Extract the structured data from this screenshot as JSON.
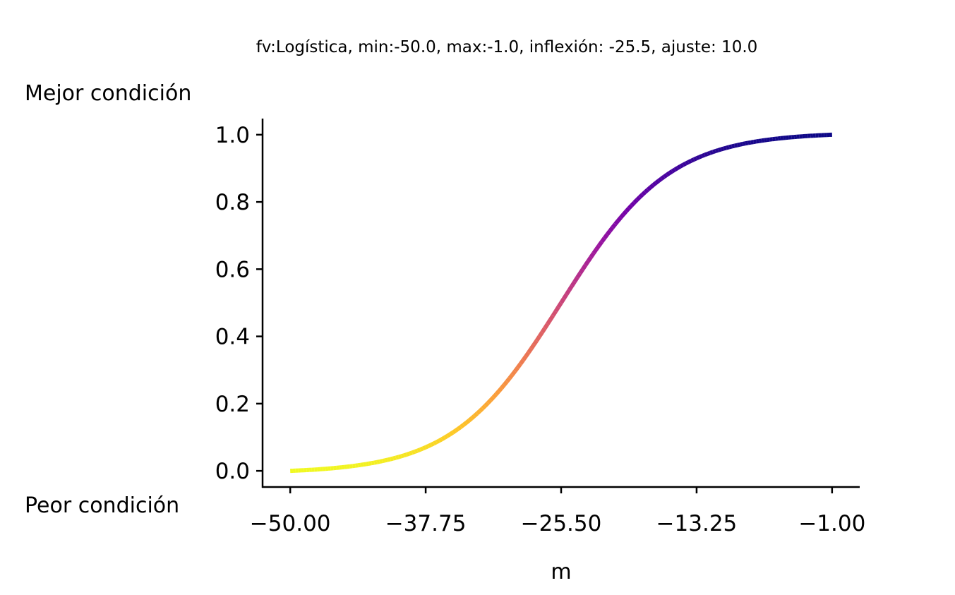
{
  "chart_data": {
    "type": "line",
    "title": "fv:Logística, min:-50.0, max:-1.0, inflexión: -25.5, ajuste: 10.0",
    "xlabel": "m",
    "ylabel": "",
    "best_label": "Mejor condición",
    "worst_label": "Peor condición",
    "xlim": [
      -52.5,
      1.5
    ],
    "ylim": [
      -0.048,
      1.048
    ],
    "xticks": [
      -50.0,
      -37.75,
      -25.5,
      -13.25,
      -1.0
    ],
    "xtick_labels": [
      "−50.00",
      "−37.75",
      "−25.50",
      "−13.25",
      "−1.00"
    ],
    "yticks": [
      0.0,
      0.2,
      0.4,
      0.6,
      0.8,
      1.0
    ],
    "ytick_labels": [
      "0.0",
      "0.2",
      "0.4",
      "0.6",
      "0.8",
      "1.0"
    ],
    "curve": {
      "kind": "logistic",
      "x_min": -50.0,
      "x_max": -1.0,
      "inflection": -25.5,
      "adjust": 10.0
    },
    "series": [
      {
        "x": [
          -50.0,
          -47.55,
          -45.1,
          -42.65,
          -40.2,
          -37.75,
          -35.3,
          -32.85,
          -30.4,
          -27.95,
          -25.5,
          -23.05,
          -20.6,
          -18.15,
          -15.7,
          -13.25,
          -10.8,
          -8.35,
          -5.9,
          -3.45,
          -1.0
        ],
        "values": [
          0.0,
          0.005,
          0.012,
          0.021,
          0.036,
          0.063,
          0.104,
          0.165,
          0.248,
          0.358,
          0.5,
          0.642,
          0.752,
          0.835,
          0.896,
          0.937,
          0.964,
          0.979,
          0.988,
          0.995,
          1.0
        ]
      }
    ],
    "colormap": "plasma_r",
    "colormap_stops": [
      "#f0f921",
      "#fdca26",
      "#fb9f3a",
      "#ed7953",
      "#d8576b",
      "#bd3786",
      "#9c179e",
      "#7201a8",
      "#46039f",
      "#0d0887"
    ],
    "grid": false
  }
}
